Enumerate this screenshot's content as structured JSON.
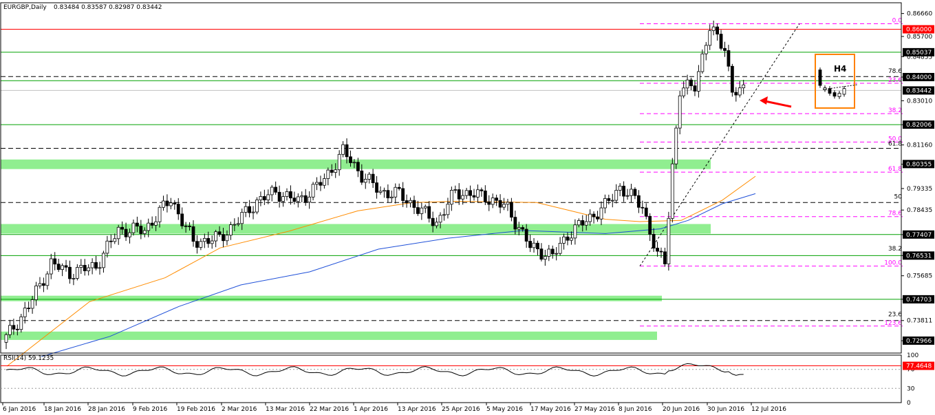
{
  "header": {
    "title": "EURGBP,Daily",
    "ohlc": "0.83484 0.83587 0.82987 0.83442"
  },
  "rsi_panel": {
    "label": "RSI(14) 59.1235",
    "scale": [
      "100",
      "70",
      "30",
      "0"
    ],
    "marker_value": "77.4648"
  },
  "inset": {
    "label": "H4"
  },
  "colors": {
    "bull": "#ffffff",
    "bear": "#000000",
    "support": "#00a000",
    "resistance": "#ff0000",
    "zone": "#90ee90",
    "fib": "#ff00ff",
    "ma_fast": "#ff8c00",
    "ma_slow": "#1e4fd8",
    "arrow": "#ff0000",
    "box": "#ff8000"
  },
  "chart_data": {
    "type": "candlestick",
    "symbol": "EURGBP",
    "timeframe": "Daily",
    "ylim": [
      0.7245,
      0.8711
    ],
    "y_ticks": [
      "0.86660",
      "0.85700",
      "0.84855",
      "0.84000",
      "0.83010",
      "0.82006",
      "0.81160",
      "0.80355",
      "0.79335",
      "0.78435",
      "0.77407",
      "0.76531",
      "0.75685",
      "0.74703",
      "0.73811",
      "0.72966"
    ],
    "x_labels": [
      "6 Jan 2016",
      "18 Jan 2016",
      "28 Jan 2016",
      "9 Feb 2016",
      "19 Feb 2016",
      "2 Mar 2016",
      "13 Mar 2016",
      "22 Mar 2016",
      "1 Apr 2016",
      "13 Apr 2016",
      "25 Apr 2016",
      "5 May 2016",
      "17 May 2016",
      "27 May 2016",
      "8 Jun 2016",
      "20 Jun 2016",
      "30 Jun 2016",
      "12 Jul 2016"
    ],
    "price_tags": [
      {
        "label": "0.86000",
        "value": 0.86,
        "style": "red"
      },
      {
        "label": "0.85037",
        "value": 0.8504,
        "style": "black"
      },
      {
        "label": "0.84000",
        "value": 0.84,
        "style": "black"
      },
      {
        "label": "0.83442",
        "value": 0.8344,
        "style": "black"
      },
      {
        "label": "0.82006",
        "value": 0.8201,
        "style": "black"
      },
      {
        "label": "0.80355",
        "value": 0.8036,
        "style": "black"
      },
      {
        "label": "0.77407",
        "value": 0.7741,
        "style": "black"
      },
      {
        "label": "0.76531",
        "value": 0.7653,
        "style": "black"
      },
      {
        "label": "0.74703",
        "value": 0.747,
        "style": "black"
      },
      {
        "label": "0.72966",
        "value": 0.7297,
        "style": "black"
      }
    ],
    "horizontal_levels": [
      {
        "value": 0.86,
        "kind": "resistance"
      },
      {
        "value": 0.8504,
        "kind": "support"
      },
      {
        "value": 0.8402,
        "kind": "dashed"
      },
      {
        "value": 0.8385,
        "kind": "support"
      },
      {
        "value": 0.8201,
        "kind": "support"
      },
      {
        "value": 0.8102,
        "kind": "dashed"
      },
      {
        "value": 0.7875,
        "kind": "dashed"
      },
      {
        "value": 0.7741,
        "kind": "support"
      },
      {
        "value": 0.7653,
        "kind": "support"
      },
      {
        "value": 0.747,
        "kind": "support"
      },
      {
        "value": 0.7381,
        "kind": "dashed"
      }
    ],
    "zones": [
      {
        "from": 0.8015,
        "to": 0.8055
      },
      {
        "from": 0.7745,
        "to": 0.7785
      },
      {
        "from": 0.7462,
        "to": 0.7485
      },
      {
        "from": 0.73,
        "to": 0.7335
      }
    ],
    "fib_labels": [
      {
        "label": "0.0",
        "value": 0.8623,
        "color": "fib"
      },
      {
        "label": "78.6",
        "value": 0.8412,
        "color": "black"
      },
      {
        "label": "23.6",
        "value": 0.8374,
        "color": "fib"
      },
      {
        "label": "38.2",
        "value": 0.8247,
        "color": "fib"
      },
      {
        "label": "50.0",
        "value": 0.8128,
        "color": "fib"
      },
      {
        "label": "61.8",
        "value": 0.8107,
        "color": "black"
      },
      {
        "label": "61.8",
        "value": 0.8002,
        "color": "fib"
      },
      {
        "label": "50",
        "value": 0.7886,
        "color": "black"
      },
      {
        "label": "78.6",
        "value": 0.7816,
        "color": "fib"
      },
      {
        "label": "38.2",
        "value": 0.7668,
        "color": "black"
      },
      {
        "label": "100.0",
        "value": 0.7609,
        "color": "fib"
      },
      {
        "label": "23.6",
        "value": 0.7393,
        "color": "black"
      },
      {
        "label": "123.6",
        "value": 0.7358,
        "color": "fib"
      }
    ],
    "rsi_levels": [
      77.4648,
      70,
      30
    ]
  }
}
